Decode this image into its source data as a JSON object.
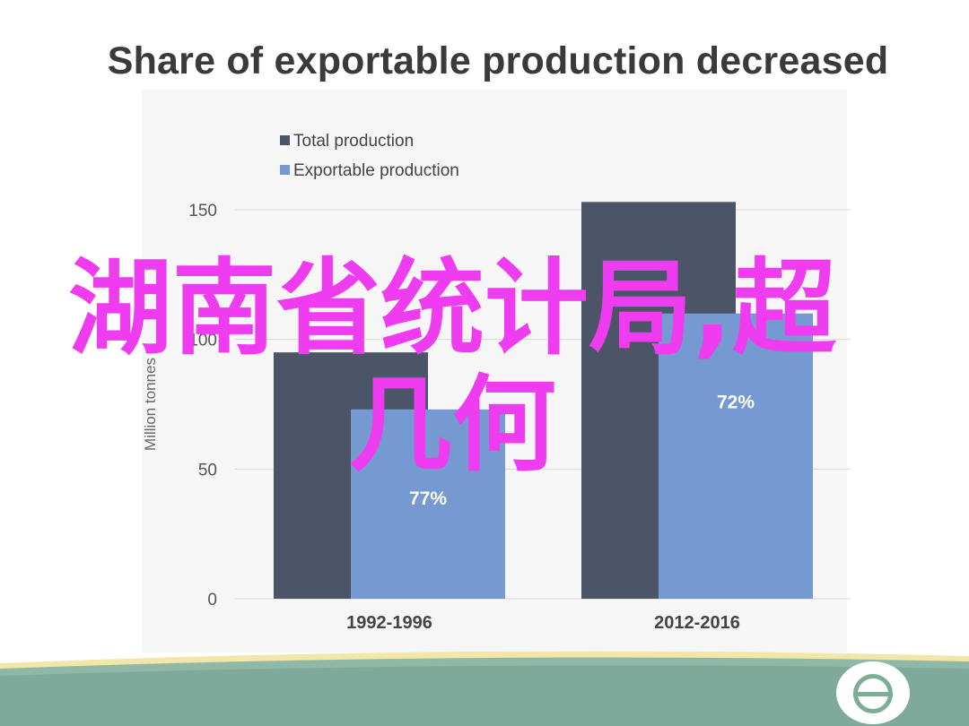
{
  "title": "Share of exportable production decreased",
  "overlay": {
    "line1": "湖南省统计局,超",
    "line2": "几何"
  },
  "colors": {
    "total": "#4b5567",
    "exportable": "#7599d1",
    "overlay": "#f03cf0",
    "footer": "#7fa99a"
  },
  "icons": {
    "logo": "circle-theta-logo-icon"
  },
  "chart_data": {
    "type": "bar",
    "categories": [
      "1992-1996",
      "2012-2016"
    ],
    "series": [
      {
        "name": "Total production",
        "values": [
          95,
          153
        ],
        "color": "#4b5567"
      },
      {
        "name": "Exportable production",
        "values": [
          73,
          110
        ],
        "color": "#7599d1",
        "labels": [
          "77%",
          "72%"
        ]
      }
    ],
    "ylabel": "Million tonnes",
    "ylim": [
      0,
      150
    ],
    "yticks": [
      0,
      50,
      100,
      150
    ],
    "grid": true,
    "legend": "top-left"
  }
}
